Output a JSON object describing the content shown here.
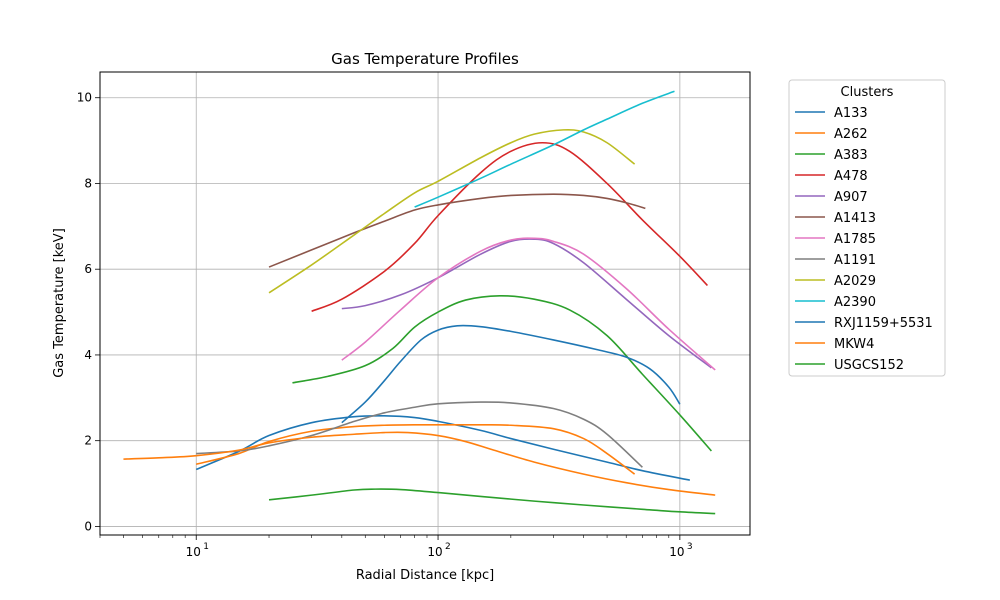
{
  "chart_data": {
    "type": "line",
    "title": "Gas Temperature Profiles",
    "xlabel": "Radial Distance [kpc]",
    "ylabel": "Gas Temperature [keV]",
    "x_scale": "log",
    "xlim": [
      4,
      1950
    ],
    "ylim": [
      -0.2,
      10.6
    ],
    "x_ticks": [
      {
        "value": 10,
        "label": "10"
      },
      {
        "value": 100,
        "label": "10"
      },
      {
        "value": 1000,
        "label": "10"
      }
    ],
    "x_tick_exponents": [
      "1",
      "2",
      "3"
    ],
    "y_ticks": [
      0,
      2,
      4,
      6,
      8,
      10
    ],
    "grid": true,
    "legend": {
      "title": "Clusters",
      "placement": "outside-right"
    },
    "series": [
      {
        "name": "A133",
        "color": "#1f77b4",
        "x": [
          10,
          15,
          20,
          30,
          45,
          60,
          80,
          100,
          150,
          200,
          300,
          500,
          700,
          1100
        ],
        "y": [
          1.33,
          1.75,
          2.12,
          2.42,
          2.56,
          2.58,
          2.54,
          2.45,
          2.24,
          2.05,
          1.8,
          1.5,
          1.3,
          1.08
        ]
      },
      {
        "name": "A262",
        "color": "#ff7f0e",
        "x": [
          10,
          15,
          20,
          30,
          45,
          60,
          80,
          100,
          150,
          200,
          300,
          400,
          500,
          650
        ],
        "y": [
          1.45,
          1.7,
          1.98,
          2.22,
          2.33,
          2.36,
          2.37,
          2.37,
          2.37,
          2.36,
          2.28,
          2.05,
          1.7,
          1.22
        ]
      },
      {
        "name": "A383",
        "color": "#2ca02c",
        "x": [
          25,
          35,
          50,
          65,
          80,
          100,
          130,
          180,
          250,
          350,
          500,
          700,
          1000,
          1350
        ],
        "y": [
          3.35,
          3.5,
          3.75,
          4.15,
          4.65,
          5.0,
          5.28,
          5.38,
          5.3,
          5.05,
          4.45,
          3.55,
          2.6,
          1.76
        ]
      },
      {
        "name": "A478",
        "color": "#d62728",
        "x": [
          30,
          40,
          60,
          80,
          100,
          150,
          200,
          270,
          350,
          500,
          700,
          1000,
          1300
        ],
        "y": [
          5.02,
          5.3,
          5.95,
          6.6,
          7.25,
          8.25,
          8.75,
          8.95,
          8.75,
          8.0,
          7.15,
          6.3,
          5.62
        ]
      },
      {
        "name": "A907",
        "color": "#9467bd",
        "x": [
          40,
          50,
          70,
          100,
          150,
          200,
          250,
          300,
          400,
          600,
          900,
          1350
        ],
        "y": [
          5.08,
          5.15,
          5.4,
          5.8,
          6.35,
          6.65,
          6.7,
          6.6,
          6.15,
          5.3,
          4.45,
          3.7
        ]
      },
      {
        "name": "A1413",
        "color": "#8c564b",
        "x": [
          20,
          30,
          45,
          60,
          80,
          100,
          150,
          200,
          300,
          400,
          500,
          600,
          720
        ],
        "y": [
          6.05,
          6.45,
          6.85,
          7.12,
          7.38,
          7.5,
          7.65,
          7.72,
          7.75,
          7.72,
          7.65,
          7.55,
          7.42
        ]
      },
      {
        "name": "A1785",
        "color": "#e377c2",
        "x": [
          40,
          50,
          70,
          100,
          150,
          200,
          250,
          300,
          400,
          600,
          900,
          1400
        ],
        "y": [
          3.88,
          4.3,
          5.05,
          5.8,
          6.42,
          6.68,
          6.72,
          6.65,
          6.35,
          5.55,
          4.6,
          3.65
        ]
      },
      {
        "name": "A1191",
        "color": "#7f7f7f",
        "x": [
          10,
          15,
          20,
          30,
          45,
          60,
          80,
          100,
          150,
          200,
          300,
          400,
          500,
          700
        ],
        "y": [
          1.7,
          1.76,
          1.88,
          2.12,
          2.45,
          2.65,
          2.78,
          2.86,
          2.9,
          2.88,
          2.75,
          2.5,
          2.15,
          1.38
        ]
      },
      {
        "name": "A2029",
        "color": "#bcbd22",
        "x": [
          20,
          30,
          45,
          60,
          80,
          100,
          150,
          200,
          250,
          330,
          400,
          500,
          650
        ],
        "y": [
          5.45,
          6.1,
          6.8,
          7.3,
          7.78,
          8.05,
          8.6,
          8.95,
          9.15,
          9.25,
          9.2,
          8.95,
          8.45
        ]
      },
      {
        "name": "A2390",
        "color": "#17becf",
        "x": [
          80,
          100,
          150,
          200,
          300,
          400,
          500,
          700,
          950
        ],
        "y": [
          7.45,
          7.68,
          8.12,
          8.45,
          8.9,
          9.25,
          9.5,
          9.87,
          10.15
        ]
      },
      {
        "name": "RXJ1159+5531",
        "color": "#1f77b4",
        "x": [
          40,
          50,
          60,
          70,
          85,
          100,
          120,
          150,
          200,
          300,
          450,
          600,
          750,
          900,
          1000
        ],
        "y": [
          2.42,
          2.9,
          3.4,
          3.85,
          4.35,
          4.58,
          4.68,
          4.66,
          4.55,
          4.35,
          4.13,
          3.95,
          3.68,
          3.25,
          2.85
        ]
      },
      {
        "name": "MKW4",
        "color": "#ff7f0e",
        "x": [
          5,
          7,
          10,
          15,
          20,
          30,
          45,
          60,
          75,
          100,
          130,
          170,
          250,
          400,
          600,
          900,
          1400
        ],
        "y": [
          1.57,
          1.6,
          1.65,
          1.78,
          1.95,
          2.08,
          2.15,
          2.19,
          2.19,
          2.12,
          1.98,
          1.78,
          1.5,
          1.22,
          1.02,
          0.86,
          0.73
        ]
      },
      {
        "name": "USGCS152",
        "color": "#2ca02c",
        "x": [
          20,
          30,
          45,
          55,
          70,
          100,
          150,
          250,
          400,
          700,
          1000,
          1400
        ],
        "y": [
          0.62,
          0.73,
          0.85,
          0.87,
          0.86,
          0.79,
          0.7,
          0.59,
          0.5,
          0.4,
          0.34,
          0.3
        ]
      }
    ]
  }
}
